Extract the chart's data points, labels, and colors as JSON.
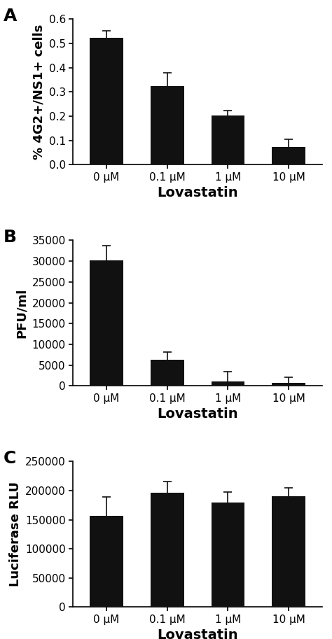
{
  "categories": [
    "0 μM",
    "0.1 μM",
    "1 μM",
    "10 μM"
  ],
  "panel_A": {
    "label": "A",
    "values": [
      0.523,
      0.325,
      0.202,
      0.073
    ],
    "errors": [
      0.03,
      0.055,
      0.022,
      0.032
    ],
    "ylabel": "% 4G2+/NS1+ cells",
    "xlabel": "Lovastatin",
    "ylim": [
      0,
      0.6
    ],
    "yticks": [
      0.0,
      0.1,
      0.2,
      0.3,
      0.4,
      0.5,
      0.6
    ]
  },
  "panel_B": {
    "label": "B",
    "values": [
      30200,
      6200,
      1050,
      650
    ],
    "errors": [
      3500,
      2000,
      2300,
      1500
    ],
    "ylabel": "PFU/ml",
    "xlabel": "Lovastatin",
    "ylim": [
      0,
      35000
    ],
    "yticks": [
      0,
      5000,
      10000,
      15000,
      20000,
      25000,
      30000,
      35000
    ]
  },
  "panel_C": {
    "label": "C",
    "values": [
      157000,
      196000,
      180000,
      190000
    ],
    "errors": [
      32000,
      20000,
      18000,
      15000
    ],
    "ylabel": "Luciferase RLU",
    "xlabel": "Lovastatin",
    "ylim": [
      0,
      250000
    ],
    "yticks": [
      0,
      50000,
      100000,
      150000,
      200000,
      250000
    ]
  },
  "bar_color": "#111111",
  "bar_width": 0.55,
  "ecolor": "#111111",
  "capsize": 4,
  "label_fontsize": 13,
  "panel_letter_fontsize": 18,
  "tick_fontsize": 11,
  "xlabel_fontsize": 14
}
